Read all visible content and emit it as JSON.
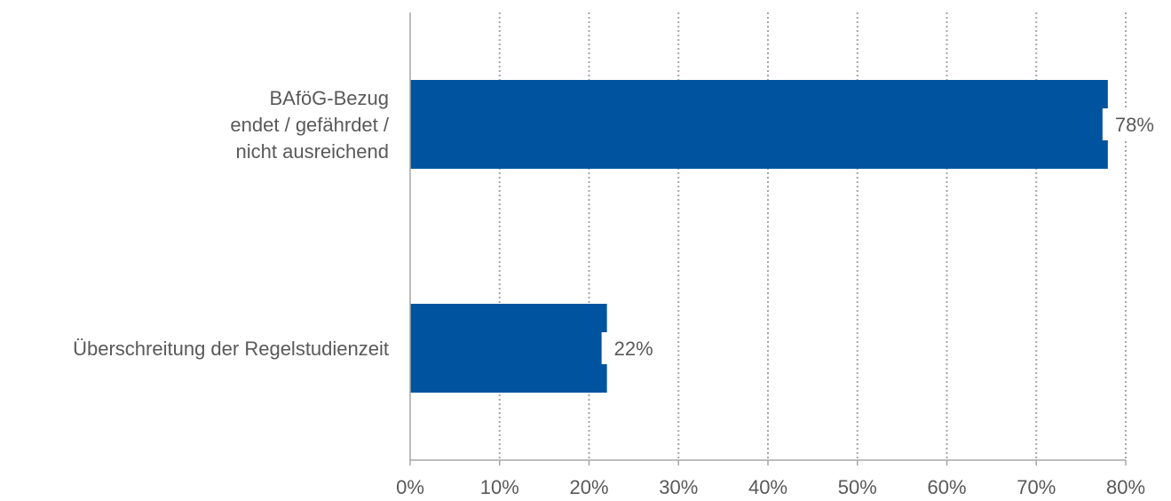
{
  "chart_data": {
    "type": "bar",
    "orientation": "horizontal",
    "categories": [
      [
        "BAföG-Bezug",
        "endet / gefährdet /",
        "nicht ausreichend"
      ],
      [
        "Überschreitung der Regelstudienzeit"
      ]
    ],
    "values": [
      78,
      22
    ],
    "value_labels": [
      "78%",
      "22%"
    ],
    "xlim": [
      0,
      80
    ],
    "xticks": [
      0,
      10,
      20,
      30,
      40,
      50,
      60,
      70,
      80
    ],
    "xtick_labels": [
      "0%",
      "10%",
      "20%",
      "30%",
      "40%",
      "50%",
      "60%",
      "70%",
      "80%"
    ],
    "grid": "vertical dotted",
    "bar_color": "#00549F",
    "title": "",
    "xlabel": "",
    "ylabel": ""
  }
}
